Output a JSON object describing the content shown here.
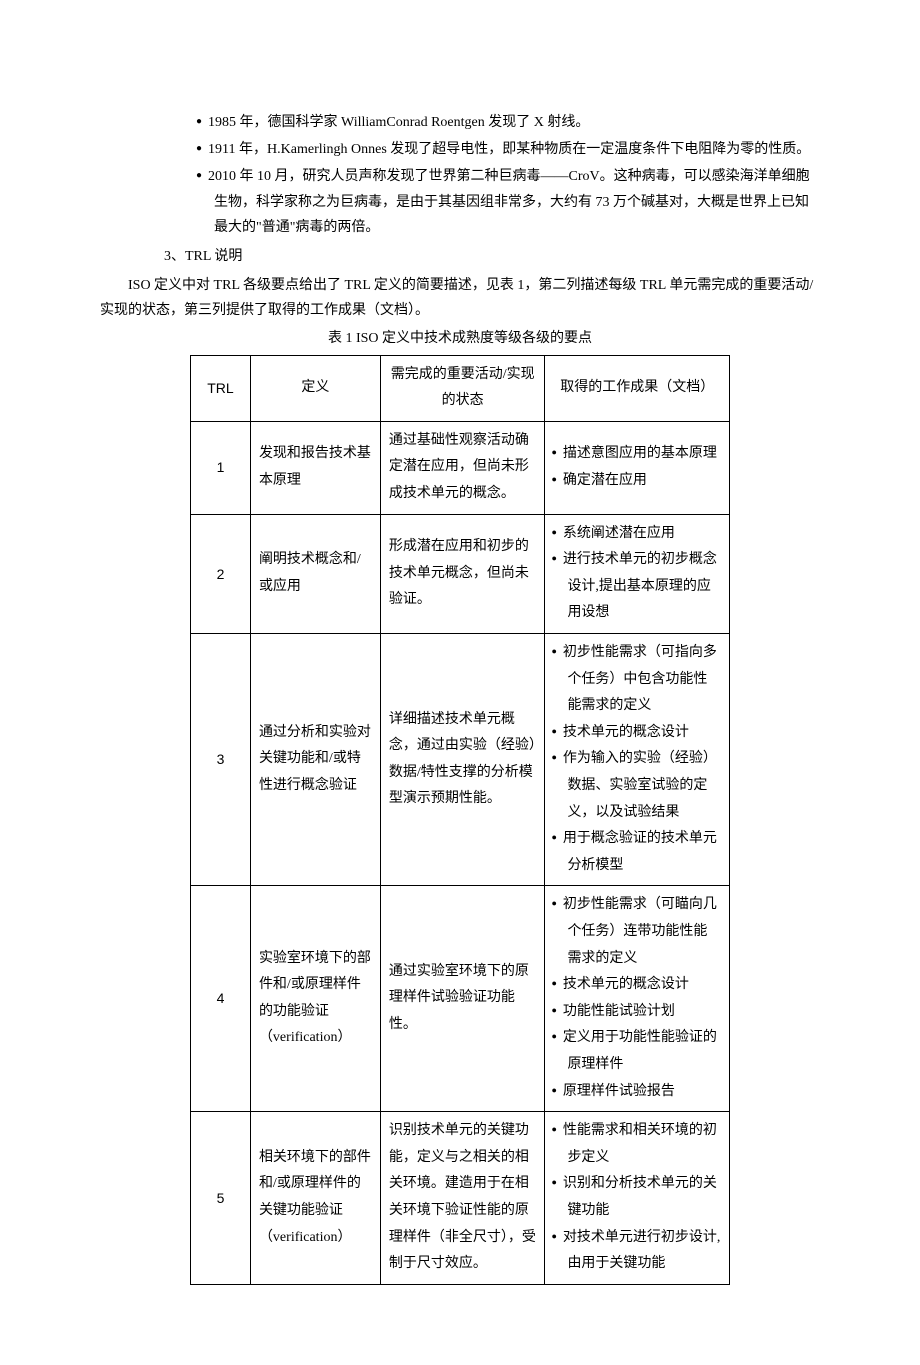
{
  "bullets": [
    "1985 年，德国科学家 WilliamConrad Roentgen 发现了 X 射线。",
    "1911 年，H.Kamerlingh Onnes 发现了超导电性，即某种物质在一定温度条件下电阻降为零的性质。",
    "2010 年 10 月，研究人员声称发现了世界第二种巨病毒——CroV。这种病毒，可以感染海洋单细胞生物，科学家称之为巨病毒，是由于其基因组非常多，大约有 73 万个碱基对，大概是世界上已知最大的\"普通\"病毒的两倍。"
  ],
  "section_heading": "3、TRL 说明",
  "intro_para": "ISO 定义中对 TRL 各级要点给出了 TRL 定义的简要描述，见表 1，第二列描述每级 TRL 单元需完成的重要活动/实现的状态，第三列提供了取得的工作成果（文档）。",
  "table_caption": "表 1 ISO 定义中技术成熟度等级各级的要点",
  "headers": {
    "trl": "TRL",
    "def": "定义",
    "act": "需完成的重要活动/实现的状态",
    "out": "取得的工作成果（文档）"
  },
  "rows": [
    {
      "trl": "1",
      "def": "发现和报告技术基本原理",
      "act": "通过基础性观察活动确定潜在应用，但尚未形成技术单元的概念。",
      "out": [
        "描述意图应用的基本原理",
        "确定潜在应用"
      ]
    },
    {
      "trl": "2",
      "def": "阐明技术概念和/或应用",
      "act": "形成潜在应用和初步的技术单元概念，但尚未验证。",
      "out": [
        "系统阐述潜在应用",
        "进行技术单元的初步概念设计,提出基本原理的应用设想"
      ]
    },
    {
      "trl": "3",
      "def": "通过分析和实验对关键功能和/或特性进行概念验证",
      "act": "详细描述技术单元概念，通过由实验（经验）数据/特性支撑的分析模型演示预期性能。",
      "out": [
        "初步性能需求（可指向多个任务）中包含功能性能需求的定义",
        "技术单元的概念设计",
        "作为输入的实验（经验）数据、实验室试验的定义，以及试验结果",
        "用于概念验证的技术单元分析模型"
      ]
    },
    {
      "trl": "4",
      "def": "实验室环境下的部件和/或原理样件的功能验证（verification）",
      "act": "通过实验室环境下的原理样件试验验证功能性。",
      "out": [
        "初步性能需求（可瞄向几个任务）连带功能性能需求的定义",
        "技术单元的概念设计",
        "功能性能试验计划",
        "定义用于功能性能验证的原理样件",
        "原理样件试验报告"
      ]
    },
    {
      "trl": "5",
      "def": "相关环境下的部件和/或原理样件的关键功能验证（verification）",
      "act": "识别技术单元的关键功能，定义与之相关的相关环境。建造用于在相关环境下验证性能的原理样件（非全尺寸），受制于尺寸效应。",
      "out": [
        "性能需求和相关环境的初步定义",
        "识别和分析技术单元的关键功能",
        "对技术单元进行初步设计,由用于关键功能"
      ]
    }
  ]
}
